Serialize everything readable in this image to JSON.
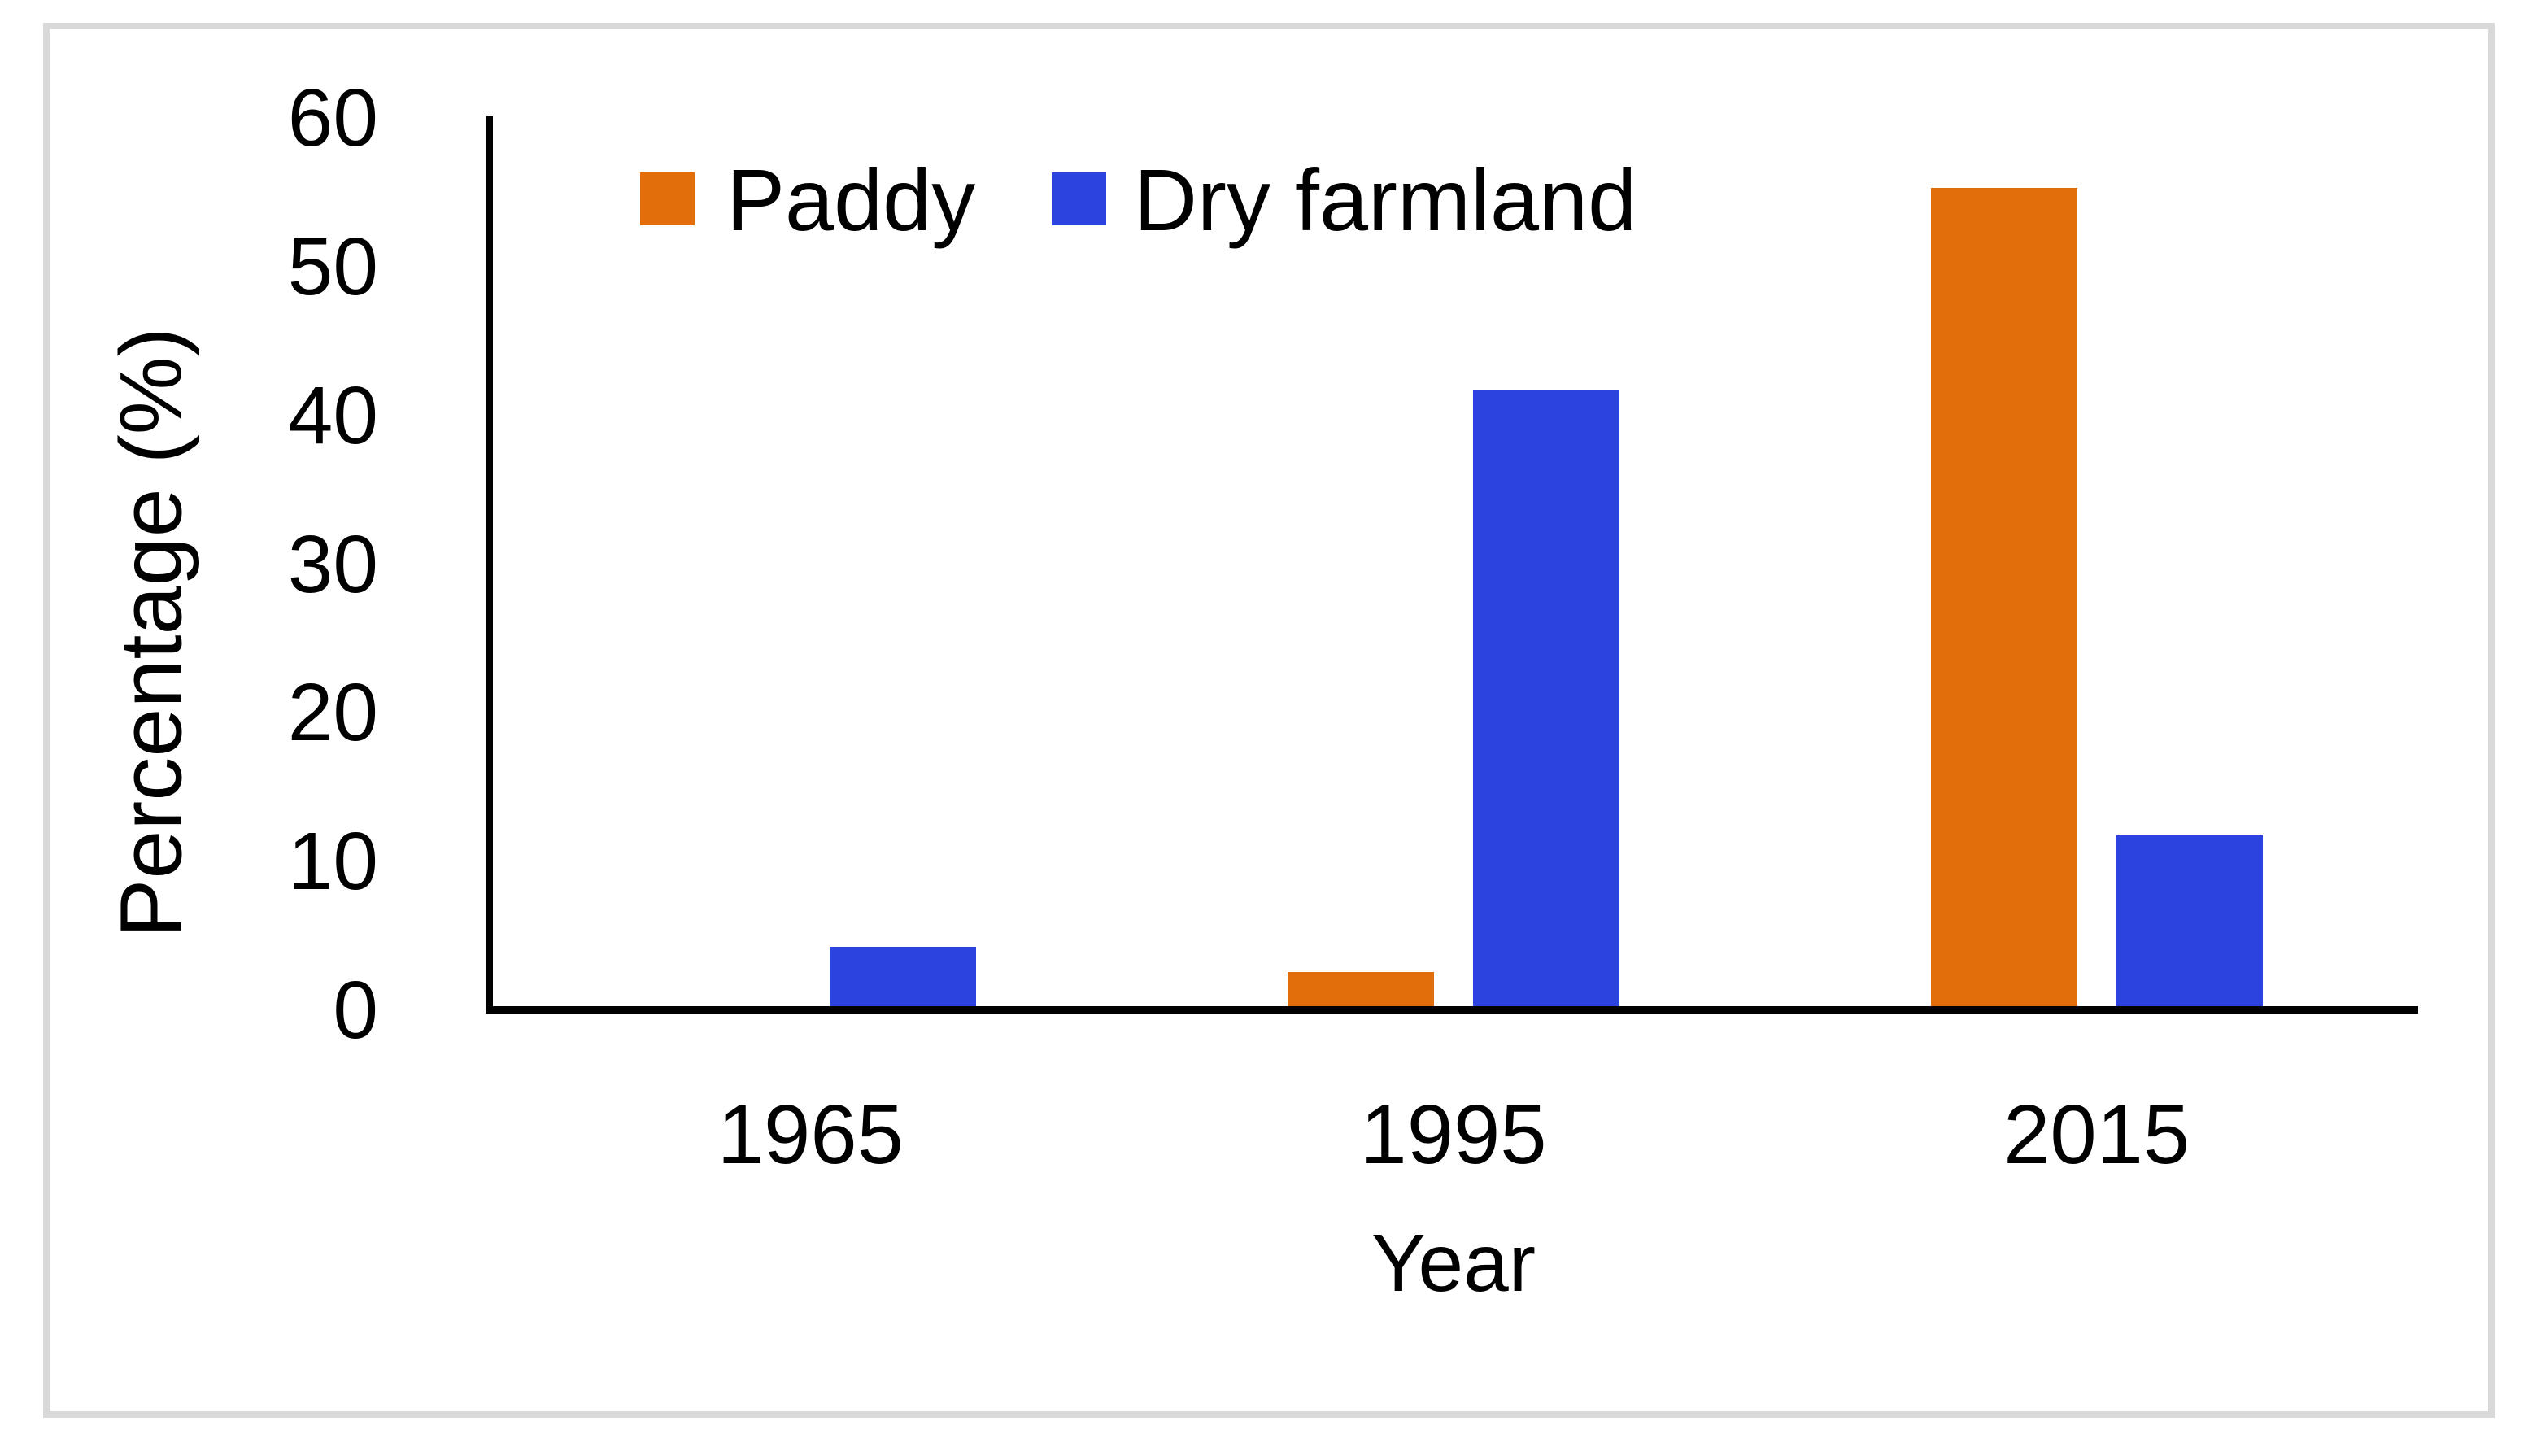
{
  "figure": {
    "background": "#ffffff",
    "frame_border_color": "#d9d9d9",
    "axis_color": "#000000",
    "text_color": "#000000"
  },
  "chart_data": {
    "type": "bar",
    "title": "",
    "categories": [
      "1965",
      "1995",
      "2015"
    ],
    "series": [
      {
        "name": "Paddy",
        "color": "#e26e0b",
        "values": [
          0,
          2.3,
          55
        ]
      },
      {
        "name": "Dry farmland",
        "color": "#2c43df",
        "values": [
          4,
          41.4,
          11.5
        ]
      }
    ],
    "xlabel": "Year",
    "ylabel": "Percentage (%)",
    "ylim": [
      0,
      60
    ],
    "ytick_step": 10,
    "yticks": [
      "0",
      "10",
      "20",
      "30",
      "40",
      "50",
      "60"
    ],
    "grid": false,
    "legend_position": "top-inside",
    "legend_labels": [
      "Paddy",
      "Dry farmland"
    ]
  }
}
